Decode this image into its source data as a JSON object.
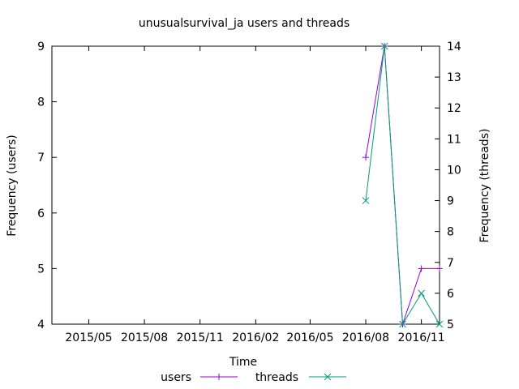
{
  "chart_data": {
    "type": "line",
    "title": "unusualsurvival_ja users and threads",
    "xlabel": "Time",
    "ylabel_left": "Frequency (users)",
    "ylabel_right": "Frequency (threads)",
    "x_ticks": [
      "2015/05",
      "2015/08",
      "2015/11",
      "2016/02",
      "2016/05",
      "2016/08",
      "2016/11"
    ],
    "x_range": [
      "2015-03-01",
      "2016-12-01"
    ],
    "y_left_range": [
      4,
      9
    ],
    "y_left_ticks": [
      "4",
      "5",
      "6",
      "7",
      "8",
      "9"
    ],
    "y_right_range": [
      5,
      14
    ],
    "y_right_ticks": [
      "5",
      "6",
      "7",
      "8",
      "9",
      "10",
      "11",
      "12",
      "13",
      "14"
    ],
    "grid": false,
    "legend_position": "bottom-center",
    "series": [
      {
        "name": "users",
        "axis": "left",
        "color": "#9400d3",
        "marker": "plus",
        "points": [
          {
            "x": "2016-08-01",
            "y": 7
          },
          {
            "x": "2016-09-01",
            "y": 9
          },
          {
            "x": "2016-10-01",
            "y": 4
          },
          {
            "x": "2016-11-01",
            "y": 5
          },
          {
            "x": "2016-12-01",
            "y": 5
          }
        ]
      },
      {
        "name": "threads",
        "axis": "right",
        "color": "#009e73",
        "marker": "cross",
        "points": [
          {
            "x": "2016-08-01",
            "y": 9
          },
          {
            "x": "2016-09-01",
            "y": 14
          },
          {
            "x": "2016-10-01",
            "y": 5
          },
          {
            "x": "2016-11-01",
            "y": 6
          },
          {
            "x": "2016-12-01",
            "y": 5
          }
        ]
      }
    ]
  }
}
